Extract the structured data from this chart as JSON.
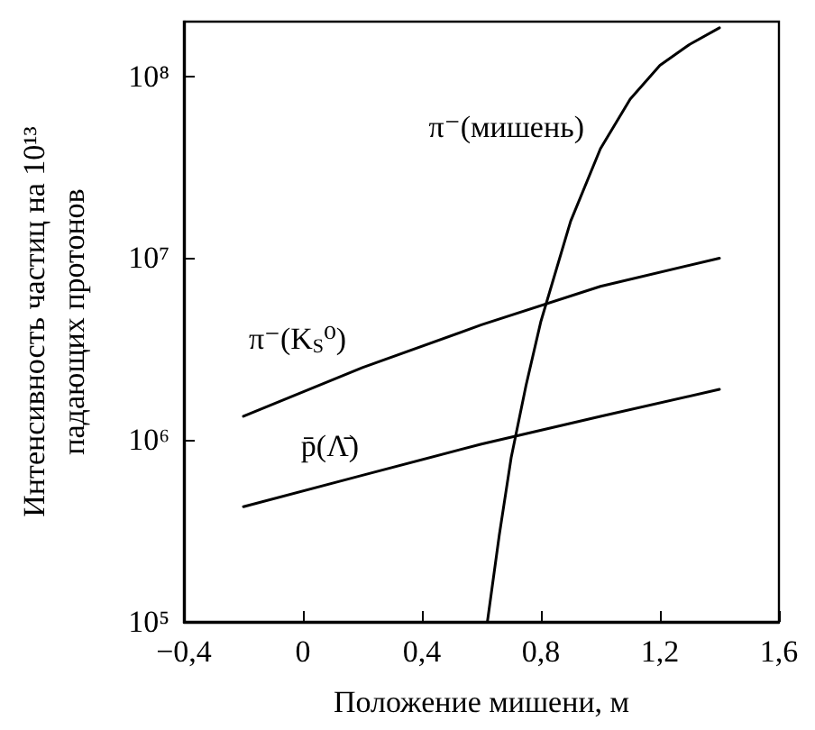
{
  "chart_data": {
    "type": "line",
    "xlabel": "Положение мишени, м",
    "ylabel": "Интенсивность частиц на 10¹³\nпадающих протонов",
    "log": "y",
    "grid": false,
    "legend": false,
    "marker": "none",
    "line_style": "solid",
    "xlim": [
      -0.4,
      1.6
    ],
    "xticks": [
      {
        "value": -0.4,
        "label": "−0,4"
      },
      0,
      {
        "value": 0.4,
        "label": "0,4"
      },
      {
        "value": 0.8,
        "label": "0,8"
      },
      {
        "value": 1.2,
        "label": "1,2"
      },
      {
        "value": 1.6,
        "label": "1,6"
      }
    ],
    "ylim": [
      100000,
      200000000
    ],
    "yticks": [
      {
        "value": 100000,
        "label": "10⁵"
      },
      {
        "value": 1000000,
        "label": "10⁶"
      },
      {
        "value": 10000000,
        "label": "10⁷"
      },
      {
        "value": 100000000,
        "label": "10⁸"
      }
    ],
    "series": [
      {
        "name": "π⁻(мишень)",
        "color": "#000000",
        "x": [
          0.62,
          0.66,
          0.7,
          0.75,
          0.8,
          0.9,
          1.0,
          1.1,
          1.2,
          1.3,
          1.4
        ],
        "values": [
          100000,
          300000,
          800000,
          2000000,
          4500000,
          16000000,
          40000000,
          75000000,
          115000000,
          150000000,
          185000000
        ]
      },
      {
        "name": "π⁻(K$_{S}$⁰)",
        "color": "#000000",
        "x": [
          -0.2,
          0.2,
          0.6,
          1.0,
          1.4
        ],
        "values": [
          1350000,
          2500000,
          4300000,
          7000000,
          10000000
        ]
      },
      {
        "name": "p̄(Λ̄)",
        "color": "#000000",
        "x": [
          -0.2,
          0.2,
          0.6,
          1.0,
          1.4
        ],
        "values": [
          430000,
          640000,
          950000,
          1350000,
          1900000
        ]
      }
    ]
  }
}
